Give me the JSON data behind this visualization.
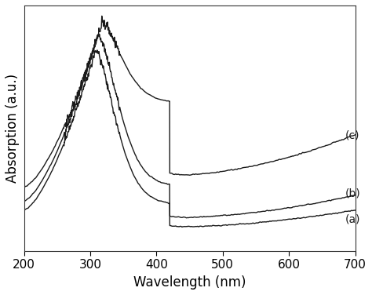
{
  "xlabel": "Wavelength (nm)",
  "ylabel": "Absorption (a.u.)",
  "xlim": [
    200,
    700
  ],
  "line_color": "#1a1a1a",
  "background_color": "#ffffff",
  "labels": [
    "(a)",
    "(b)",
    "(c)"
  ],
  "tick_fontsize": 11,
  "axis_label_fontsize": 12
}
